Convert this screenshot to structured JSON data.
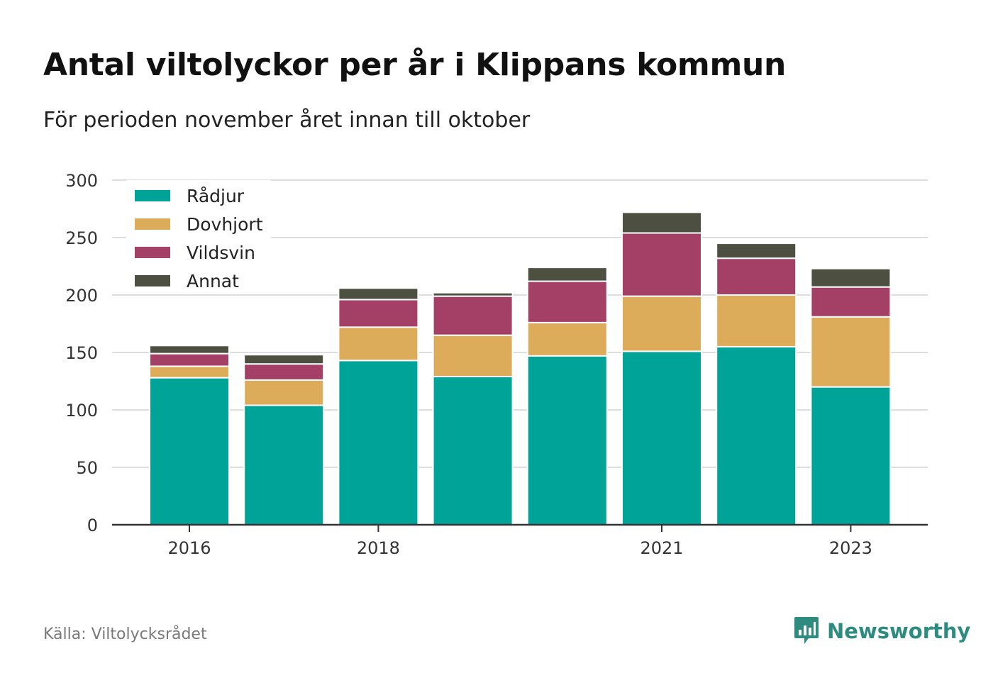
{
  "title": "Antal viltolyckor per år i Klippans kommun",
  "subtitle": "För perioden november året innan till oktober",
  "source": "Källa: Viltolycksrådet",
  "brand": "Newsworthy",
  "colors": {
    "Rådjur": "#00a398",
    "Dovhjort": "#dcac5b",
    "Vildsvin": "#a44065",
    "Annat": "#4d5040",
    "brand": "#2e8b80"
  },
  "chart_data": {
    "type": "bar",
    "stacked": true,
    "categories": [
      "2016",
      "2017",
      "2018",
      "2019",
      "2020",
      "2021",
      "2022",
      "2023"
    ],
    "x_tick_labels": [
      "2016",
      "",
      "2018",
      "",
      "",
      "2021",
      "",
      "2023"
    ],
    "series": [
      {
        "name": "Rådjur",
        "values": [
          128,
          104,
          143,
          129,
          147,
          151,
          155,
          120
        ]
      },
      {
        "name": "Dovhjort",
        "values": [
          10,
          22,
          29,
          36,
          29,
          48,
          45,
          61
        ]
      },
      {
        "name": "Vildsvin",
        "values": [
          11,
          14,
          24,
          34,
          36,
          55,
          32,
          26
        ]
      },
      {
        "name": "Annat",
        "values": [
          7,
          8,
          10,
          3,
          12,
          18,
          13,
          16
        ]
      }
    ],
    "ylim": [
      0,
      300
    ],
    "yticks": [
      0,
      50,
      100,
      150,
      200,
      250,
      300
    ],
    "grid": true,
    "legend_position": "top-left"
  }
}
